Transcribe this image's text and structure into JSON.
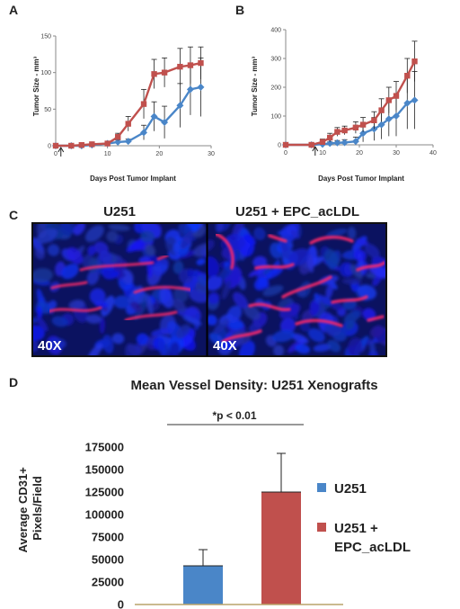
{
  "panels": {
    "a": "A",
    "b": "B",
    "c": "C",
    "d": "D"
  },
  "micrographs": {
    "left_title": "U251",
    "right_title": "U251 + EPC_acLDL",
    "left_mag": "40X",
    "right_mag": "40X"
  },
  "colors": {
    "blue": "#4a86c8",
    "red": "#c0504d",
    "baseline": "#b9a36a"
  },
  "chart_data": [
    {
      "type": "line",
      "panel": "A",
      "xlabel": "Days Post Tumor Implant",
      "ylabel": "Tumor Size - mm³",
      "xlim": [
        0,
        30
      ],
      "ylim": [
        0,
        150
      ],
      "xticks": [
        0,
        10,
        20,
        30
      ],
      "yticks": [
        0,
        50,
        100,
        150
      ],
      "grid": false,
      "arrow_at_x": 1,
      "series": [
        {
          "color": "#4a86c8",
          "marker": "diamond",
          "x": [
            0,
            3,
            5,
            7,
            10,
            12,
            14,
            17,
            19,
            21,
            24,
            26,
            28
          ],
          "y": [
            0,
            0,
            0,
            1,
            3,
            5,
            6,
            18,
            40,
            32,
            55,
            77,
            80
          ],
          "err": [
            0,
            0,
            0,
            1,
            2,
            3,
            3,
            10,
            20,
            22,
            30,
            35,
            40
          ]
        },
        {
          "color": "#c0504d",
          "marker": "square",
          "x": [
            0,
            3,
            5,
            7,
            10,
            12,
            14,
            17,
            19,
            21,
            24,
            26,
            28
          ],
          "y": [
            0,
            0,
            1,
            2,
            3,
            12,
            30,
            57,
            98,
            100,
            108,
            110,
            113
          ],
          "err": [
            0,
            0,
            1,
            1,
            2,
            5,
            10,
            20,
            20,
            20,
            25,
            25,
            22
          ]
        }
      ]
    },
    {
      "type": "line",
      "panel": "B",
      "xlabel": "Days Post Tumor Implant",
      "ylabel": "Tumor Size - mm³",
      "xlim": [
        0,
        40
      ],
      "ylim": [
        0,
        400
      ],
      "xticks": [
        0,
        10,
        20,
        30,
        40
      ],
      "yticks": [
        0,
        100,
        200,
        300,
        400
      ],
      "grid": false,
      "arrow_at_x": 8,
      "series": [
        {
          "color": "#4a86c8",
          "marker": "diamond",
          "x": [
            0,
            7,
            10,
            12,
            14,
            16,
            19,
            21,
            24,
            26,
            28,
            30,
            33,
            35
          ],
          "y": [
            0,
            0,
            2,
            5,
            7,
            8,
            12,
            40,
            55,
            70,
            90,
            100,
            145,
            155
          ],
          "err": [
            0,
            0,
            3,
            5,
            8,
            10,
            15,
            30,
            40,
            50,
            60,
            70,
            90,
            100
          ]
        },
        {
          "color": "#c0504d",
          "marker": "square",
          "x": [
            0,
            7,
            10,
            12,
            14,
            16,
            19,
            21,
            24,
            26,
            28,
            30,
            33,
            35
          ],
          "y": [
            0,
            0,
            10,
            25,
            45,
            50,
            60,
            70,
            85,
            120,
            155,
            170,
            240,
            290
          ],
          "err": [
            0,
            0,
            10,
            15,
            15,
            15,
            20,
            25,
            30,
            40,
            45,
            50,
            60,
            70
          ]
        }
      ]
    },
    {
      "type": "bar",
      "panel": "D",
      "title": "Mean Vessel Density: U251 Xenografts",
      "ylabel": "Average CD31+ Pixels/Field",
      "ylim": [
        0,
        175000
      ],
      "yticks": [
        0,
        25000,
        50000,
        75000,
        100000,
        125000,
        150000,
        175000
      ],
      "categories": [
        "U251",
        "U251 + EPC_acLDL"
      ],
      "values": [
        43000,
        125000
      ],
      "errors": [
        18000,
        43000
      ],
      "colors": [
        "#4a86c8",
        "#c0504d"
      ],
      "legend": [
        "U251",
        "U251 +",
        "EPC_acLDL"
      ],
      "annotation": "*p < 0.01",
      "grid": false
    }
  ]
}
